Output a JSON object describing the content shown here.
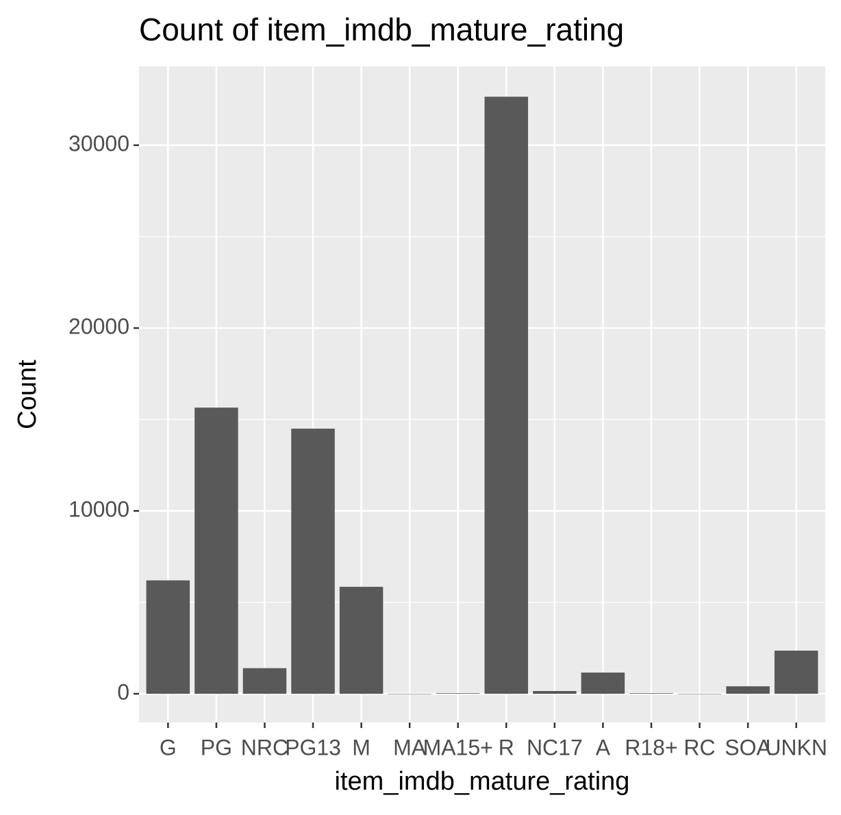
{
  "chart_data": {
    "type": "bar",
    "title": "Count of item_imdb_mature_rating",
    "x_label": "item_imdb_mature_rating",
    "y_label": "Count",
    "categories": [
      "G",
      "PG",
      "NRC",
      "PG13",
      "M",
      "MA",
      "MA15+",
      "R",
      "NC17",
      "A",
      "R18+",
      "RC",
      "SOA",
      "UNKN"
    ],
    "values": [
      6200,
      15650,
      1400,
      14500,
      5850,
      0,
      30,
      32650,
      150,
      1160,
      30,
      0,
      410,
      2360
    ],
    "color": "#595959",
    "ylim": [
      -1573,
      34307
    ],
    "yticks": [
      0,
      10000,
      20000,
      30000
    ],
    "yminor": [
      5000,
      15000,
      25000
    ],
    "grid": true
  }
}
